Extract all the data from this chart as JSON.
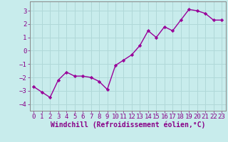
{
  "x": [
    0,
    1,
    2,
    3,
    4,
    5,
    6,
    7,
    8,
    9,
    10,
    11,
    12,
    13,
    14,
    15,
    16,
    17,
    18,
    19,
    20,
    21,
    22,
    23
  ],
  "y": [
    -2.7,
    -3.1,
    -3.5,
    -2.2,
    -1.6,
    -1.9,
    -1.9,
    -2.0,
    -2.3,
    -2.9,
    -1.1,
    -0.7,
    -0.3,
    0.4,
    1.5,
    1.0,
    1.8,
    1.5,
    2.3,
    3.1,
    3.0,
    2.8,
    2.3,
    2.3
  ],
  "line_color": "#990099",
  "marker": "D",
  "marker_size": 2.2,
  "background_color": "#c8ecec",
  "grid_color": "#b0d8d8",
  "xlabel": "Windchill (Refroidissement éolien,°C)",
  "xlim": [
    -0.5,
    23.5
  ],
  "ylim": [
    -4.5,
    3.7
  ],
  "yticks": [
    -4,
    -3,
    -2,
    -1,
    0,
    1,
    2,
    3
  ],
  "xticks": [
    0,
    1,
    2,
    3,
    4,
    5,
    6,
    7,
    8,
    9,
    10,
    11,
    12,
    13,
    14,
    15,
    16,
    17,
    18,
    19,
    20,
    21,
    22,
    23
  ],
  "xlabel_fontsize": 7.0,
  "tick_fontsize": 6.5,
  "tick_color": "#880088",
  "axis_color": "#888888",
  "line_width": 1.0
}
